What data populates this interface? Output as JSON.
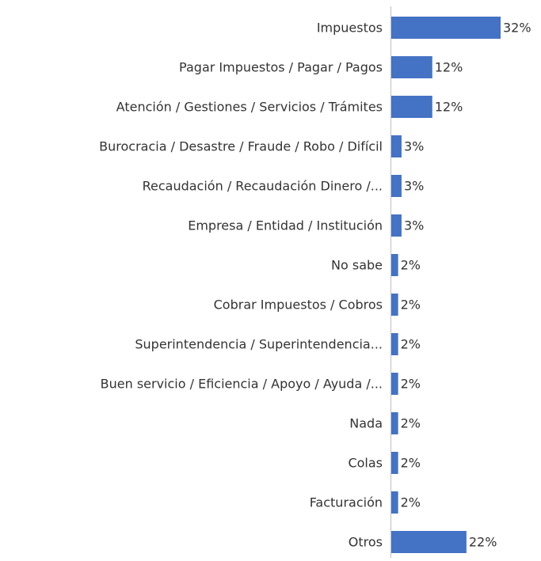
{
  "chart_data": {
    "type": "bar",
    "orientation": "horizontal",
    "categories": [
      "Impuestos",
      "Pagar Impuestos / Pagar / Pagos",
      "Atención / Gestiones / Servicios / Trámites",
      "Burocracia / Desastre / Fraude / Robo / Difícil",
      "Recaudación / Recaudación Dinero /...",
      "Empresa / Entidad / Institución",
      "No sabe",
      "Cobrar Impuestos / Cobros",
      "Superintendencia / Superintendencia...",
      "Buen servicio / Eficiencia / Apoyo / Ayuda /...",
      "Nada",
      "Colas",
      "Facturación",
      "Otros"
    ],
    "values": [
      32,
      12,
      12,
      3,
      3,
      3,
      2,
      2,
      2,
      2,
      2,
      2,
      2,
      22
    ],
    "value_labels": [
      "32%",
      "12%",
      "12%",
      "3%",
      "3%",
      "3%",
      "2%",
      "2%",
      "2%",
      "2%",
      "2%",
      "2%",
      "2%",
      "22%"
    ],
    "color": "#4472c4",
    "xlim": [
      0,
      32
    ]
  }
}
